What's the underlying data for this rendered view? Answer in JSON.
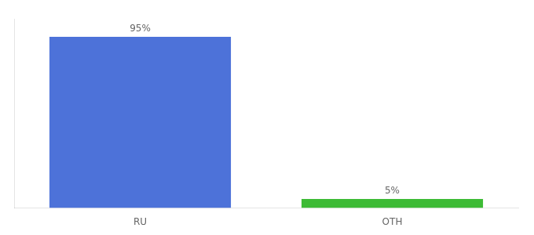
{
  "chart_data": {
    "type": "bar",
    "categories": [
      "RU",
      "OTH"
    ],
    "values": [
      95,
      5
    ],
    "value_labels": [
      "95%",
      "5%"
    ],
    "colors": [
      "#4d72d9",
      "#3dbb35"
    ],
    "data_labels": true,
    "ylim": [
      0,
      105
    ],
    "tick_labels": "x",
    "grid": false
  }
}
